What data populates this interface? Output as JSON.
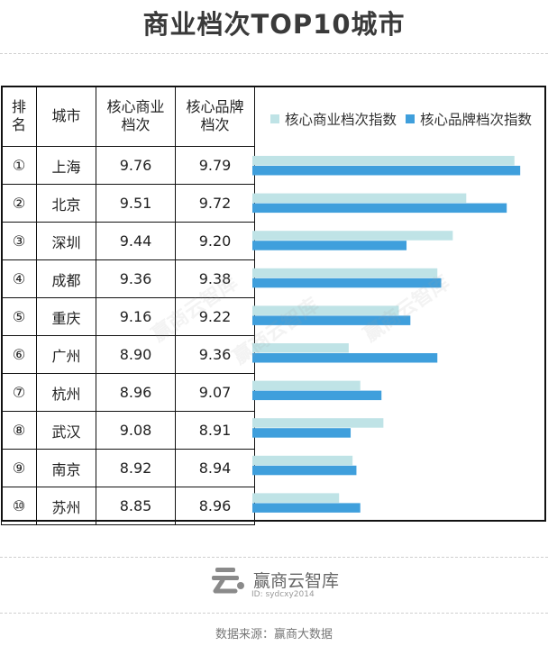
{
  "title": "商业档次TOP10城市",
  "table": {
    "headers": {
      "rank": "排名",
      "city": "城市",
      "commercial": "核心商业档次",
      "brand": "核心品牌档次"
    },
    "rows": [
      {
        "rank": "①",
        "city": "上海",
        "commercial": "9.76",
        "brand": "9.79"
      },
      {
        "rank": "②",
        "city": "北京",
        "commercial": "9.51",
        "brand": "9.72"
      },
      {
        "rank": "③",
        "city": "深圳",
        "commercial": "9.44",
        "brand": "9.20"
      },
      {
        "rank": "④",
        "city": "成都",
        "commercial": "9.36",
        "brand": "9.38"
      },
      {
        "rank": "⑤",
        "city": "重庆",
        "commercial": "9.16",
        "brand": "9.22"
      },
      {
        "rank": "⑥",
        "city": "广州",
        "commercial": "8.90",
        "brand": "9.36"
      },
      {
        "rank": "⑦",
        "city": "杭州",
        "commercial": "8.96",
        "brand": "9.07"
      },
      {
        "rank": "⑧",
        "city": "武汉",
        "commercial": "9.08",
        "brand": "8.91"
      },
      {
        "rank": "⑨",
        "city": "南京",
        "commercial": "8.92",
        "brand": "8.94"
      },
      {
        "rank": "⑩",
        "city": "苏州",
        "commercial": "8.85",
        "brand": "8.96"
      }
    ]
  },
  "chart_data": {
    "type": "bar",
    "orientation": "horizontal",
    "categories": [
      "上海",
      "北京",
      "深圳",
      "成都",
      "重庆",
      "广州",
      "杭州",
      "武汉",
      "南京",
      "苏州"
    ],
    "series": [
      {
        "name": "核心商业档次指数",
        "color": "#bfe3e6",
        "values": [
          9.76,
          9.51,
          9.44,
          9.36,
          9.16,
          8.9,
          8.96,
          9.08,
          8.92,
          8.85
        ]
      },
      {
        "name": "核心品牌档次指数",
        "color": "#3f9fdc",
        "values": [
          9.79,
          9.72,
          9.2,
          9.38,
          9.22,
          9.36,
          9.07,
          8.91,
          8.94,
          8.96
        ]
      }
    ],
    "xlim": [
      8.4,
      9.85
    ],
    "legend_position": "top",
    "grid": false
  },
  "logo": {
    "name": "赢商云智库",
    "id": "ID: sydcxy2014"
  },
  "source": "数据来源：赢商大数据",
  "watermark": "赢商云智库"
}
